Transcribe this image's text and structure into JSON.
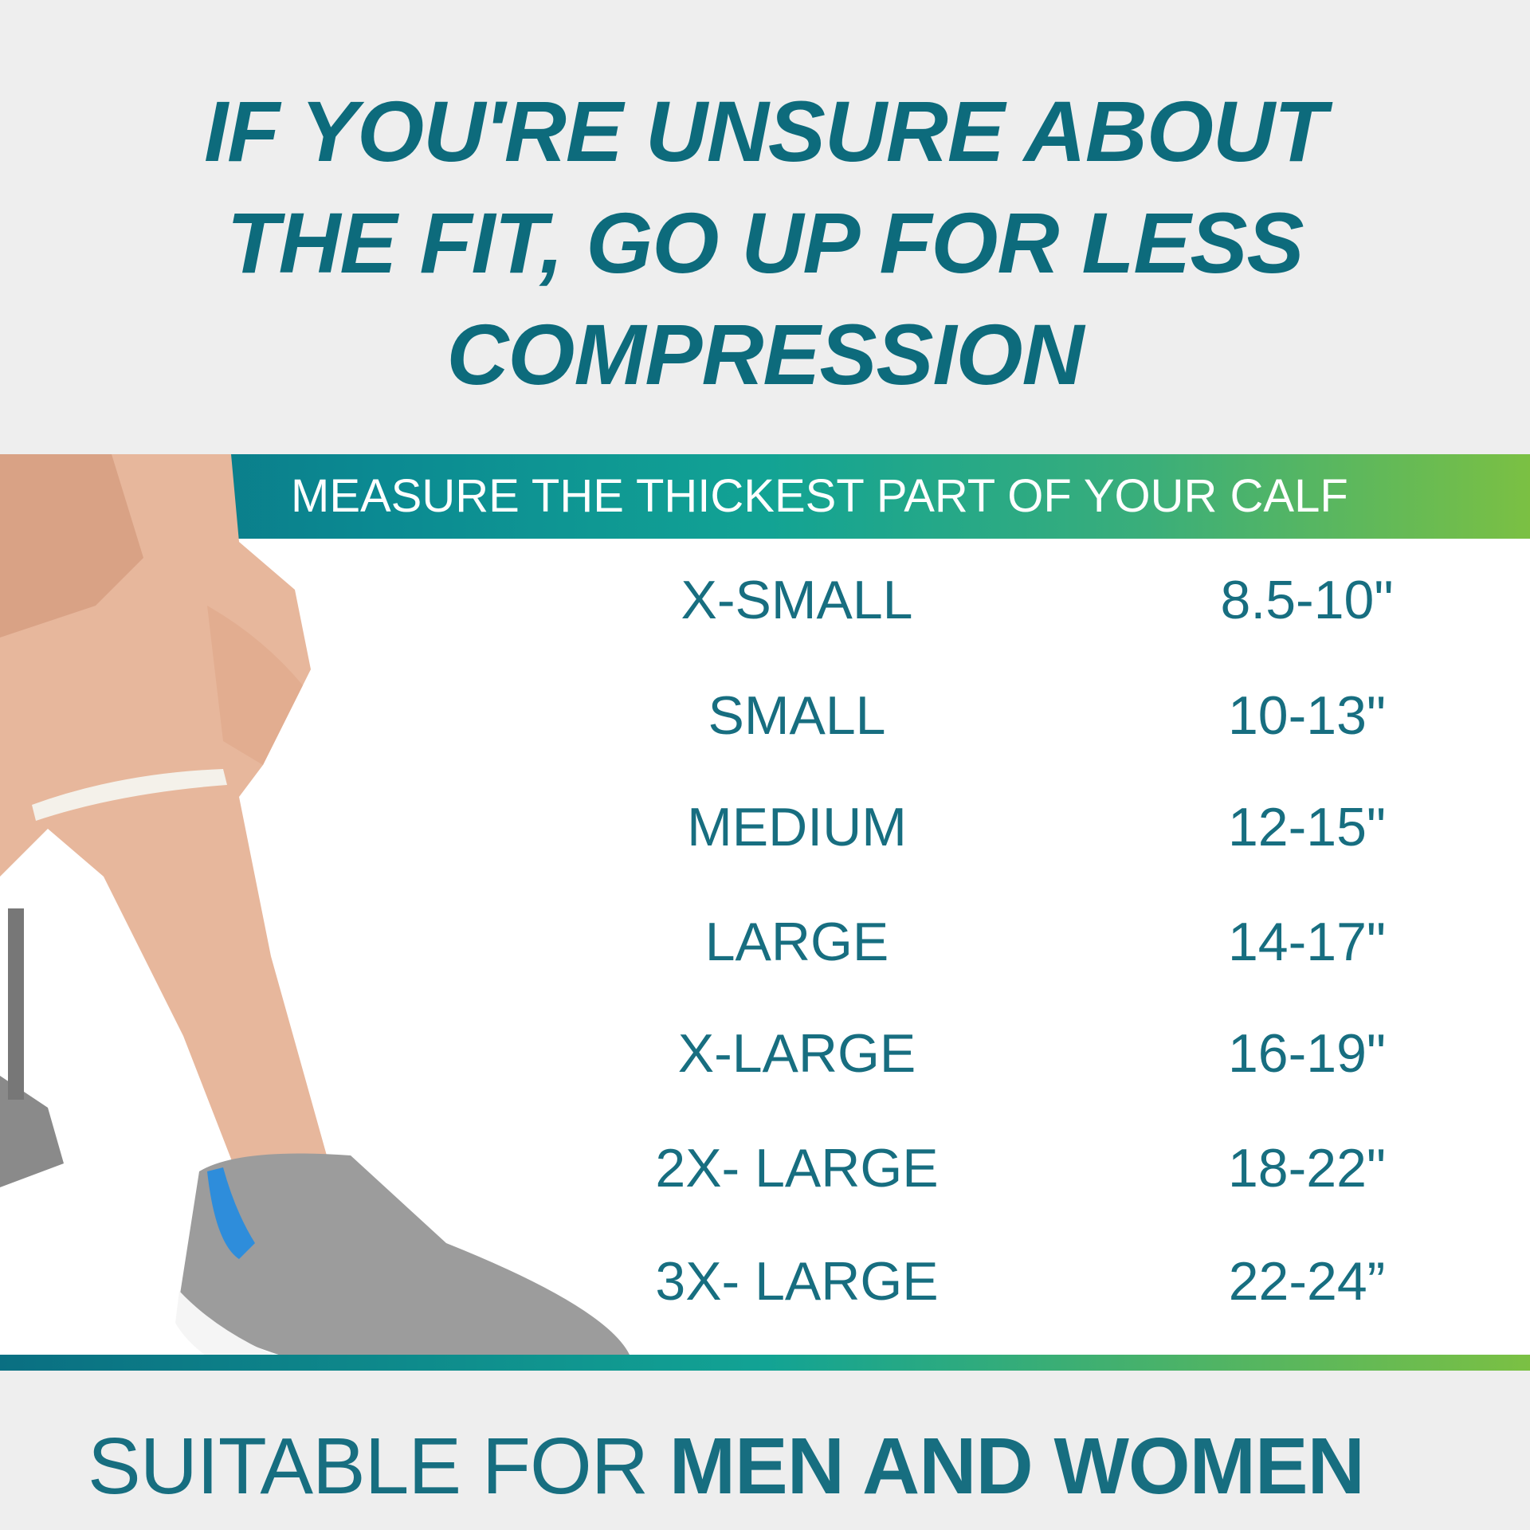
{
  "headline": {
    "lines": [
      "IF YOU'RE UNSURE ABOUT",
      "THE FIT, GO UP FOR LESS",
      "COMPRESSION"
    ]
  },
  "banner": {
    "text": "MEASURE THE THICKEST PART OF YOUR CALF"
  },
  "size_chart": [
    {
      "size": "X-SMALL",
      "measurement": "8.5-10\""
    },
    {
      "size": "SMALL",
      "measurement": "10-13\""
    },
    {
      "size": "MEDIUM",
      "measurement": "12-15\""
    },
    {
      "size": "LARGE",
      "measurement": "14-17\""
    },
    {
      "size": "X-LARGE",
      "measurement": "16-19\""
    },
    {
      "size": "2X- LARGE",
      "measurement": "18-22\""
    },
    {
      "size": "3X- LARGE",
      "measurement": "22-24”"
    }
  ],
  "footer": {
    "light": "SUITABLE FOR ",
    "bold": "MEN AND WOMEN"
  },
  "colors": {
    "primary": "#0d6b7c",
    "gradient_start": "#0a6f82",
    "gradient_mid": "#12a394",
    "gradient_end": "#7bc043",
    "background": "#eeeeee"
  }
}
